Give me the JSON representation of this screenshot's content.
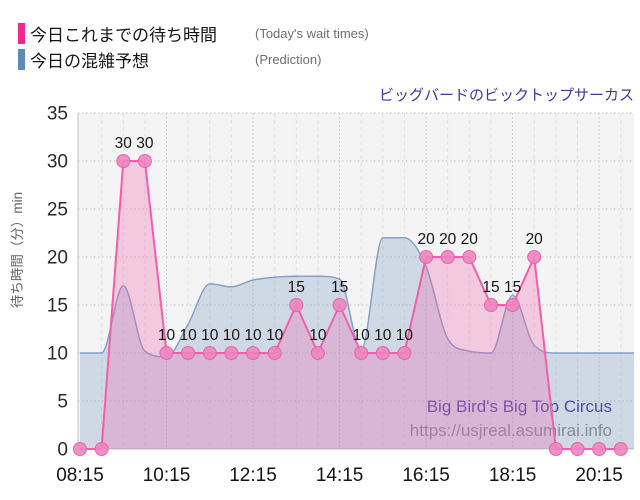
{
  "title": "ビッグバードのビックトップサーカス",
  "legend": {
    "items": [
      {
        "label_jp": "今日これまでの待ち時間",
        "label_en": "(Today's wait times)",
        "color": "#f0278f"
      },
      {
        "label_jp": "今日の混雑予想",
        "label_en": "(Prediction)",
        "color": "#5d8bb8"
      }
    ]
  },
  "watermark": {
    "line1": "Big Bird's Big Top Circus",
    "line2": "https://usjreal.asumirai.info",
    "line1_color": "#3f3f9d",
    "line2_color": "#8f8f91"
  },
  "chart_data": {
    "type": "area",
    "title": "ビッグバードのビックトップサーカス",
    "ylabel": "待ち時間（分）min",
    "ylim": [
      0,
      35
    ],
    "y_ticks": [
      0,
      5,
      10,
      15,
      20,
      25,
      30,
      35
    ],
    "x_tick_labels": [
      "08:15",
      "10:15",
      "12:15",
      "14:15",
      "16:15",
      "18:15",
      "20:15"
    ],
    "grid": true,
    "legend_position": "top-left",
    "times": [
      "08:15",
      "08:45",
      "09:15",
      "09:45",
      "10:15",
      "10:45",
      "11:15",
      "11:45",
      "12:15",
      "12:45",
      "13:15",
      "13:45",
      "14:15",
      "14:45",
      "15:15",
      "15:45",
      "16:15",
      "16:45",
      "17:15",
      "17:45",
      "18:15",
      "18:45",
      "19:15",
      "19:45",
      "20:15",
      "20:45"
    ],
    "series": [
      {
        "name": "今日これまでの待ち時間",
        "style": "line-markers-labels",
        "line_color": "#f15fa9",
        "fill_color": "rgba(242,104,177,0.30)",
        "marker_fill": "#ee84c0",
        "marker_stroke": "#e765ab",
        "values": [
          0,
          0,
          30,
          30,
          10,
          10,
          10,
          10,
          10,
          10,
          15,
          10,
          15,
          10,
          10,
          10,
          20,
          20,
          20,
          15,
          15,
          20,
          0,
          0,
          0,
          0
        ]
      },
      {
        "name": "今日の混雑予想",
        "style": "smooth-area",
        "line_color": "#87a0c3",
        "fill_color": "rgba(90,135,182,0.24)",
        "values": [
          10,
          10,
          17,
          10.2,
          9.6,
          13,
          17.2,
          16.9,
          17.6,
          17.9,
          18,
          18,
          17.7,
          10.3,
          22,
          22,
          19,
          11.5,
          10.2,
          10,
          16,
          10.8,
          10,
          10,
          10,
          10
        ]
      }
    ]
  }
}
